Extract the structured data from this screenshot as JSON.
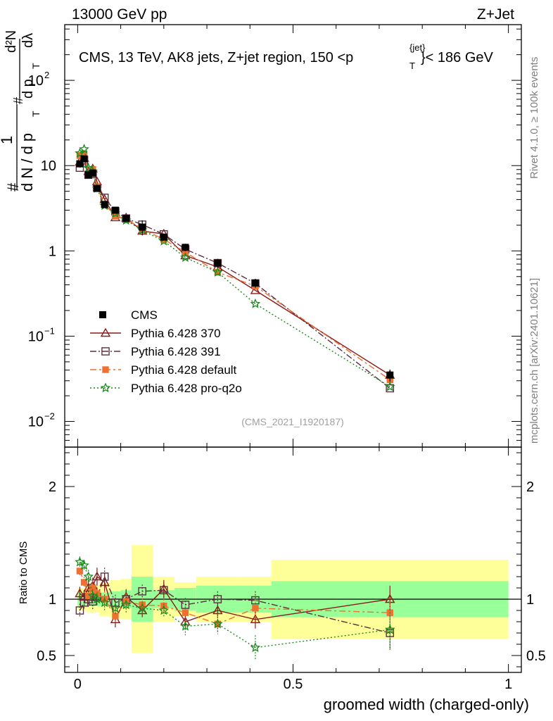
{
  "header": {
    "left": "13000 GeV pp",
    "right": "Z+Jet",
    "side_top": "Rivet 4.1.0, ≥ 100k events",
    "side_bottom": "mcplots.cern.ch [arXiv:2401.10621]",
    "ref": "(CMS_2021_I1920187)"
  },
  "chart_data": {
    "type": "line",
    "title_parts": {
      "pre": "CMS, 13 TeV, AK8 jets, Z+jet region, 150 <",
      "p": "p",
      "sup": "{jet}",
      "sub": "T",
      "post": "}< 186 GeV"
    },
    "xlabel": "groomed width (charged-only)",
    "ylabel": "1/N dN/dp_T d²N/dp_T dλ",
    "ylabel_parts": {
      "frac_num": "1",
      "frac_den": "d N / d p",
      "d2n": "d²N",
      "dp": "d p",
      "dlam": "dλ",
      "sub": "T",
      "hash": "#"
    },
    "ratio_ylabel": "Ratio to CMS",
    "xlim": [
      -0.03,
      1.03
    ],
    "main_ylim": [
      0.005,
      450
    ],
    "ratio_ylim": [
      0.35,
      2.35
    ],
    "x_ticks": [
      {
        "v": 0,
        "label": "0"
      },
      {
        "v": 0.5,
        "label": "0.5"
      },
      {
        "v": 1,
        "label": "1"
      }
    ],
    "main_ticks": [
      {
        "v": 0.01,
        "base": "10",
        "exp": "−2"
      },
      {
        "v": 0.1,
        "base": "10",
        "exp": "−1"
      },
      {
        "v": 1,
        "base": "1",
        "exp": ""
      },
      {
        "v": 10,
        "base": "10",
        "exp": ""
      },
      {
        "v": 100,
        "base": "10",
        "exp": "2"
      }
    ],
    "ratio_ticks": [
      {
        "v": 0.5,
        "label": "0.5"
      },
      {
        "v": 1,
        "label": "1"
      },
      {
        "v": 2,
        "label": "2"
      }
    ],
    "bins": [
      [
        0.0,
        0.01
      ],
      [
        0.01,
        0.02
      ],
      [
        0.02,
        0.03
      ],
      [
        0.03,
        0.04
      ],
      [
        0.04,
        0.05
      ],
      [
        0.05,
        0.075
      ],
      [
        0.075,
        0.1
      ],
      [
        0.1,
        0.125
      ],
      [
        0.125,
        0.175
      ],
      [
        0.175,
        0.225
      ],
      [
        0.225,
        0.275
      ],
      [
        0.275,
        0.375
      ],
      [
        0.375,
        0.45
      ],
      [
        0.45,
        1.0
      ]
    ],
    "x": [
      0.005,
      0.015,
      0.025,
      0.035,
      0.045,
      0.0625,
      0.0875,
      0.1125,
      0.15,
      0.2,
      0.25,
      0.325,
      0.4125,
      0.725
    ],
    "cms": {
      "name": "CMS",
      "values": [
        10.5,
        12.0,
        7.8,
        8.2,
        5.4,
        3.5,
        3.0,
        2.4,
        1.9,
        1.45,
        1.1,
        0.72,
        0.42,
        0.035
      ],
      "band_stat": [
        0.06,
        0.06,
        0.06,
        0.06,
        0.06,
        0.06,
        0.07,
        0.08,
        0.2,
        0.08,
        0.1,
        0.12,
        0.12,
        0.16
      ],
      "band_total": [
        0.1,
        0.1,
        0.12,
        0.12,
        0.12,
        0.15,
        0.17,
        0.18,
        0.48,
        0.2,
        0.15,
        0.2,
        0.2,
        0.35
      ]
    },
    "series": [
      {
        "name": "Pythia 6.428 370",
        "color": "#8b1a1a",
        "marker": "tri",
        "dash": "",
        "ratio": [
          1.05,
          1.02,
          1.1,
          1.12,
          1.2,
          1.15,
          0.82,
          1.02,
          0.9,
          1.09,
          0.8,
          0.9,
          0.82,
          1.0
        ],
        "err": [
          0.06,
          0.06,
          0.07,
          0.07,
          0.08,
          0.08,
          0.07,
          0.07,
          0.06,
          0.08,
          0.06,
          0.07,
          0.08,
          0.12
        ]
      },
      {
        "name": "Pythia 6.428 391",
        "color": "#5a3040",
        "marker": "sq",
        "dash": "9,3,2,3",
        "ratio": [
          0.9,
          0.97,
          1.0,
          0.98,
          1.02,
          1.2,
          0.97,
          1.0,
          1.07,
          1.08,
          0.95,
          1.0,
          0.99,
          0.7
        ],
        "err": [
          0.06,
          0.06,
          0.07,
          0.07,
          0.07,
          0.08,
          0.07,
          0.07,
          0.06,
          0.07,
          0.06,
          0.07,
          0.08,
          0.15
        ]
      },
      {
        "name": "Pythia 6.428 default",
        "color": "#f07030",
        "marker": "fsq",
        "dash": "9,4,3,4",
        "ratio": [
          1.25,
          1.15,
          1.03,
          1.1,
          1.05,
          1.0,
          0.85,
          0.98,
          0.95,
          0.94,
          0.88,
          0.78,
          0.92,
          0.88
        ],
        "err": [
          0.05,
          0.05,
          0.06,
          0.06,
          0.06,
          0.07,
          0.06,
          0.07,
          0.06,
          0.06,
          0.06,
          0.07,
          0.08,
          0.1
        ]
      },
      {
        "name": "Pythia 6.428 pro-q2o",
        "color": "#1a8a1a",
        "marker": "star",
        "dash": "2,3",
        "ratio": [
          1.33,
          1.3,
          1.2,
          1.03,
          1.0,
          0.97,
          0.92,
          0.95,
          0.92,
          0.9,
          0.76,
          0.78,
          0.57,
          0.73
        ],
        "err": [
          0.05,
          0.05,
          0.06,
          0.06,
          0.06,
          0.07,
          0.06,
          0.07,
          0.06,
          0.06,
          0.08,
          0.09,
          0.11,
          0.18
        ]
      }
    ]
  }
}
